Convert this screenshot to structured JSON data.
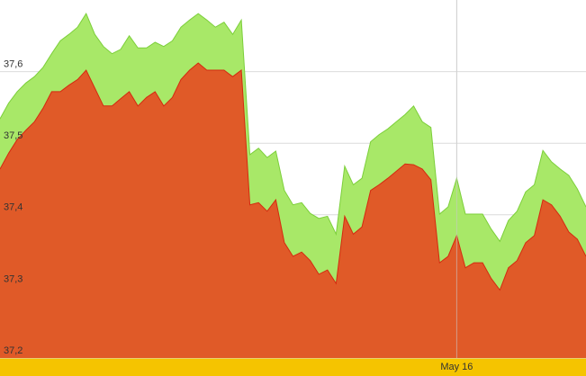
{
  "chart_data": {
    "type": "area",
    "categories": [
      null,
      null,
      null,
      null,
      null,
      null,
      null,
      null,
      null,
      null,
      null,
      null,
      null,
      null,
      null,
      null,
      null,
      null,
      null,
      null,
      null,
      null,
      null,
      null,
      null,
      null,
      null,
      null,
      null,
      null,
      null,
      null,
      null,
      null,
      null,
      null,
      null,
      null,
      null,
      null,
      null,
      null,
      null,
      null,
      null,
      null,
      null,
      null,
      null,
      null,
      null,
      null,
      null,
      "May 16",
      null,
      null,
      null,
      null,
      null,
      null,
      null,
      null,
      null,
      null,
      null,
      null,
      null,
      null,
      null
    ],
    "series": [
      {
        "color": "#a8e868",
        "values": [
          37.534,
          37.556,
          37.572,
          37.584,
          37.593,
          37.606,
          37.625,
          37.643,
          37.652,
          37.662,
          37.681,
          37.652,
          37.635,
          37.625,
          37.631,
          37.65,
          37.633,
          37.633,
          37.641,
          37.635,
          37.643,
          37.662,
          37.672,
          37.681,
          37.672,
          37.662,
          37.669,
          37.652,
          37.672,
          37.484,
          37.493,
          37.48,
          37.489,
          37.434,
          37.414,
          37.417,
          37.402,
          37.395,
          37.398,
          37.373,
          37.468,
          37.442,
          37.451,
          37.502,
          37.512,
          37.52,
          37.53,
          37.54,
          37.552,
          37.53,
          37.522,
          37.401,
          37.411,
          37.451,
          37.401,
          37.401,
          37.401,
          37.38,
          37.363,
          37.392,
          37.405,
          37.432,
          37.442,
          37.49,
          37.474,
          37.464,
          37.455,
          37.436,
          37.411
        ]
      },
      {
        "color": "#e05a28",
        "values": [
          37.464,
          37.486,
          37.505,
          37.518,
          37.53,
          37.549,
          37.572,
          37.572,
          37.581,
          37.589,
          37.602,
          37.577,
          37.552,
          37.552,
          37.562,
          37.572,
          37.552,
          37.564,
          37.572,
          37.552,
          37.564,
          37.589,
          37.602,
          37.612,
          37.602,
          37.602,
          37.602,
          37.593,
          37.602,
          37.414,
          37.417,
          37.405,
          37.421,
          37.361,
          37.342,
          37.348,
          37.336,
          37.317,
          37.323,
          37.304,
          37.398,
          37.373,
          37.383,
          37.434,
          37.442,
          37.451,
          37.461,
          37.471,
          37.47,
          37.464,
          37.449,
          37.333,
          37.342,
          37.371,
          37.326,
          37.333,
          37.333,
          37.311,
          37.295,
          37.326,
          37.336,
          37.361,
          37.371,
          37.421,
          37.414,
          37.398,
          37.376,
          37.366,
          37.342
        ]
      }
    ],
    "ylim": [
      37.2,
      37.7
    ],
    "yticks": [
      {
        "value": 37.2,
        "label": "37,2"
      },
      {
        "value": 37.3,
        "label": "37,3"
      },
      {
        "value": 37.4,
        "label": "37,4"
      },
      {
        "value": 37.5,
        "label": "37,5"
      },
      {
        "value": 37.6,
        "label": "37,6"
      }
    ],
    "grid": true
  }
}
